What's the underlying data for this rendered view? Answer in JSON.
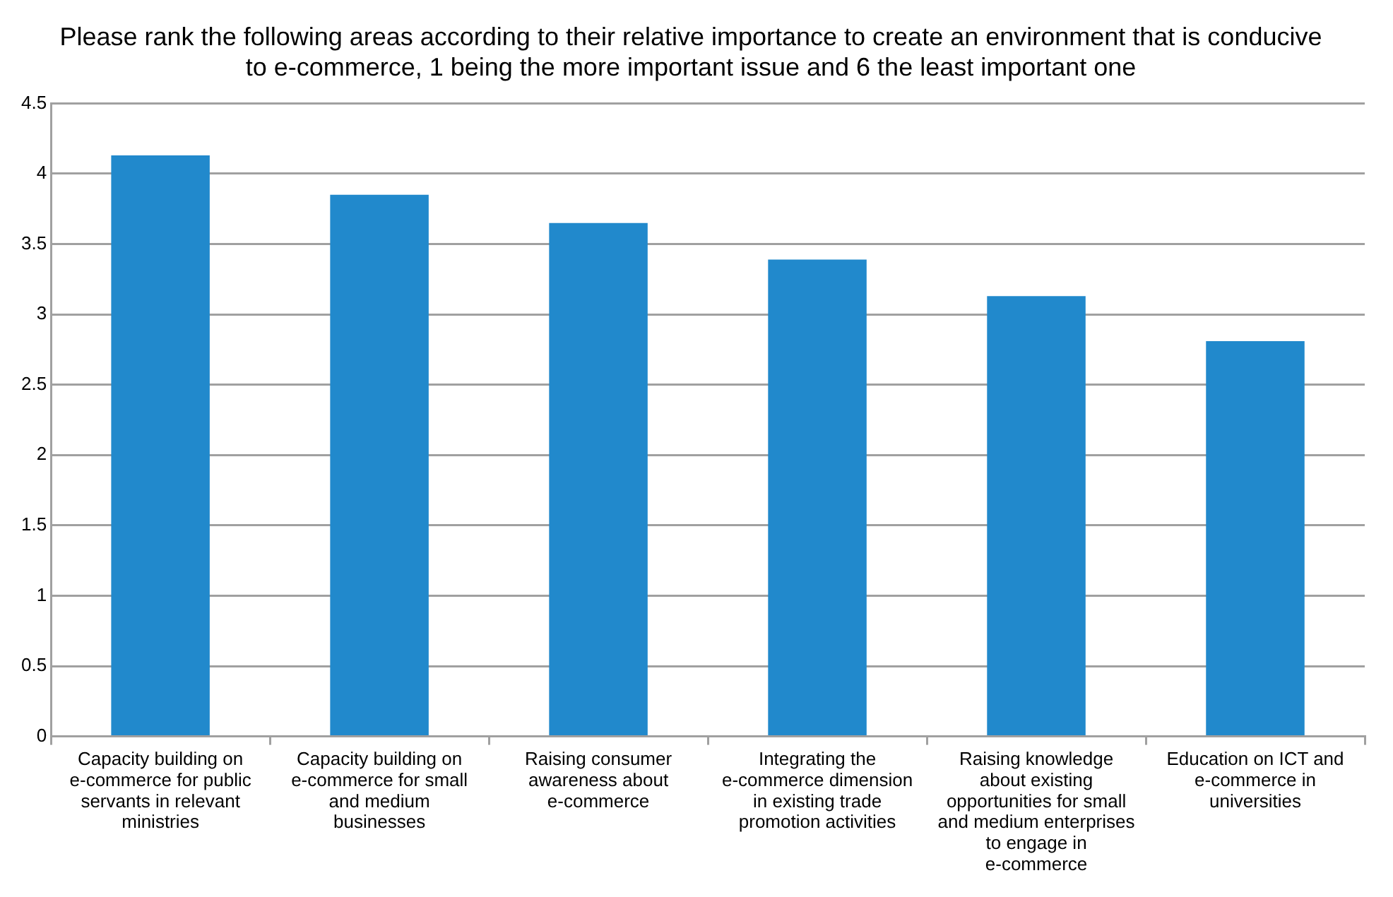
{
  "chart_data": {
    "type": "bar",
    "title": "Please rank the following areas according to their relative importance to create an environment that is conducive to e-commerce, 1 being the more important issue and 6 the least important one",
    "categories": [
      "Capacity building on e-commerce for public servants in relevant ministries",
      "Capacity building on e-commerce for small and medium businesses",
      "Raising consumer awareness about e-commerce",
      "Integrating the e-commerce dimension in existing trade promotion activities",
      "Raising knowledge about existing opportunities for small and medium enterprises to engage in e-commerce",
      "Education on ICT and e-commerce in universities"
    ],
    "values": [
      4.13,
      3.85,
      3.65,
      3.39,
      3.13,
      2.81
    ],
    "color": "#2189cc",
    "ylim": [
      0,
      4.5
    ],
    "yticks": [
      0,
      0.5,
      1,
      1.5,
      2,
      2.5,
      3,
      3.5,
      4,
      4.5
    ],
    "grid": "y",
    "legend": false
  }
}
